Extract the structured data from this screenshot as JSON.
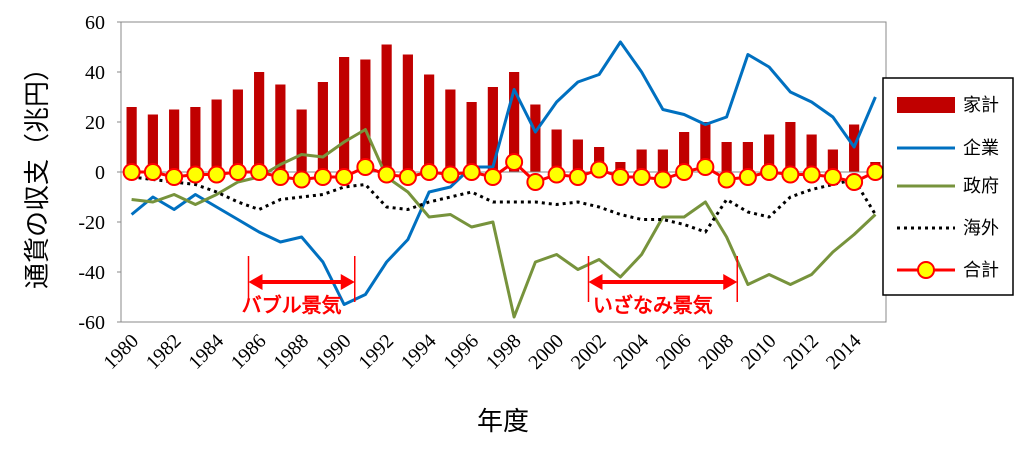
{
  "chart_data": {
    "type": "bar",
    "xlabel": "年度",
    "ylabel": "通貨の収支（兆円）",
    "ylim": [
      -60,
      60
    ],
    "yticks": [
      -60,
      -40,
      -20,
      0,
      20,
      40,
      60
    ],
    "years": [
      1980,
      1981,
      1982,
      1983,
      1984,
      1985,
      1986,
      1987,
      1988,
      1989,
      1990,
      1991,
      1992,
      1993,
      1994,
      1995,
      1996,
      1997,
      1998,
      1999,
      2000,
      2001,
      2002,
      2003,
      2004,
      2005,
      2006,
      2007,
      2008,
      2009,
      2010,
      2011,
      2012,
      2013,
      2014,
      2015
    ],
    "xtick_labels": [
      "1980",
      "1982",
      "1984",
      "1986",
      "1988",
      "1990",
      "1992",
      "1994",
      "1996",
      "1998",
      "2000",
      "2002",
      "2004",
      "2006",
      "2008",
      "2010",
      "2012",
      "2014"
    ],
    "legend_position": "right",
    "series": [
      {
        "name": "家計",
        "kind": "bar",
        "color": "#c00000",
        "values": [
          26,
          23,
          25,
          26,
          29,
          33,
          40,
          35,
          25,
          36,
          46,
          45,
          51,
          47,
          39,
          33,
          28,
          34,
          40,
          27,
          17,
          13,
          10,
          4,
          9,
          9,
          16,
          20,
          12,
          12,
          15,
          20,
          15,
          9,
          19,
          4
        ]
      },
      {
        "name": "企業",
        "kind": "line",
        "color": "#0070c0",
        "values": [
          -17,
          -10,
          -15,
          -9,
          -14,
          -19,
          -24,
          -28,
          -26,
          -36,
          -53,
          -49,
          -36,
          -27,
          -8,
          -6,
          2,
          2,
          33,
          16,
          28,
          36,
          39,
          52,
          40,
          25,
          23,
          19,
          22,
          47,
          42,
          32,
          28,
          22,
          10,
          30
        ]
      },
      {
        "name": "政府",
        "kind": "line",
        "color": "#77933c",
        "values": [
          -11,
          -12,
          -9,
          -13,
          -9,
          -4,
          -2,
          3,
          7,
          6,
          12,
          17,
          -2,
          -8,
          -18,
          -17,
          -22,
          -20,
          -58,
          -36,
          -33,
          -39,
          -35,
          -42,
          -33,
          -18,
          -18,
          -12,
          -26,
          -45,
          -41,
          -45,
          -41,
          -32,
          -25,
          -17
        ]
      },
      {
        "name": "海外",
        "kind": "line",
        "color": "#000000",
        "dash": "3 4",
        "values": [
          -2,
          -3,
          -4,
          -5,
          -8,
          -12,
          -15,
          -11,
          -10,
          -9,
          -6,
          -5,
          -14,
          -15,
          -12,
          -10,
          -8,
          -12,
          -12,
          -12,
          -13,
          -12,
          -14,
          -17,
          -19,
          -19,
          -21,
          -24,
          -11,
          -16,
          -18,
          -10,
          -7,
          -5,
          -3,
          -17
        ]
      },
      {
        "name": "合計",
        "kind": "marker-line",
        "color": "#ff0000",
        "marker_fill": "#ffff00",
        "values": [
          0,
          0,
          -2,
          -1,
          -1,
          0,
          0,
          -2,
          -3,
          -2,
          -2,
          2,
          -1,
          -2,
          0,
          -1,
          0,
          -2,
          4,
          -4,
          -1,
          -2,
          1,
          -2,
          -2,
          -3,
          0,
          2,
          -3,
          -2,
          0,
          -1,
          -1,
          -2,
          -4,
          0
        ]
      }
    ],
    "annotations": [
      {
        "label": "バブル景気",
        "from": 1986,
        "to": 1991,
        "color": "#ff0000"
      },
      {
        "label": "いざなみ景気",
        "from": 2002,
        "to": 2009,
        "color": "#ff0000"
      }
    ]
  }
}
